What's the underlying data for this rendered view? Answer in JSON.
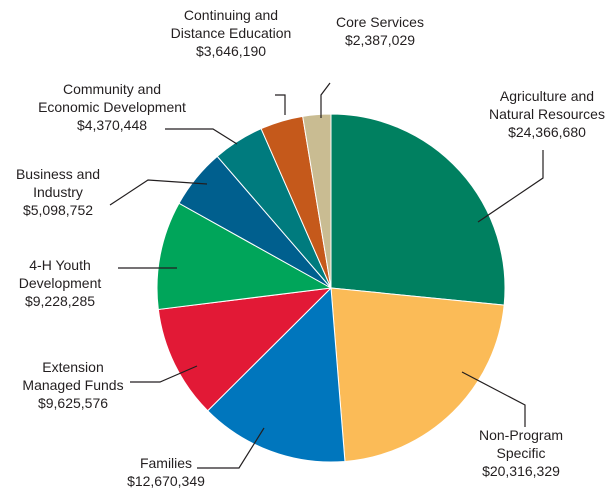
{
  "chart_data": {
    "type": "pie",
    "title": "",
    "slices": [
      {
        "name_lines": [
          "Agriculture and",
          "Natural Resources"
        ],
        "amount_text": "$24,366,680",
        "value": 24366680,
        "color": "#008060"
      },
      {
        "name_lines": [
          "Non-Program",
          "Specific"
        ],
        "amount_text": "$20,316,329",
        "value": 20316329,
        "color": "#fbbb57"
      },
      {
        "name_lines": [
          "Families"
        ],
        "amount_text": "$12,670,349",
        "value": 12670349,
        "color": "#0076bd"
      },
      {
        "name_lines": [
          "Extension",
          "Managed Funds"
        ],
        "amount_text": "$9,625,576",
        "value": 9625576,
        "color": "#e21936"
      },
      {
        "name_lines": [
          "4-H Youth",
          "Development"
        ],
        "amount_text": "$9,228,285",
        "value": 9228285,
        "color": "#00a55a"
      },
      {
        "name_lines": [
          "Business and",
          "Industry"
        ],
        "amount_text": "$5,098,752",
        "value": 5098752,
        "color": "#005f8e"
      },
      {
        "name_lines": [
          "Community and",
          "Economic Development"
        ],
        "amount_text": "$4,370,448",
        "value": 4370448,
        "color": "#007b7e"
      },
      {
        "name_lines": [
          "Continuing and",
          "Distance Education"
        ],
        "amount_text": "$3,646,190",
        "value": 3646190,
        "color": "#c5591b"
      },
      {
        "name_lines": [
          "Core Services"
        ],
        "amount_text": "$2,387,029",
        "value": 2387029,
        "color": "#c9bc92"
      }
    ]
  }
}
